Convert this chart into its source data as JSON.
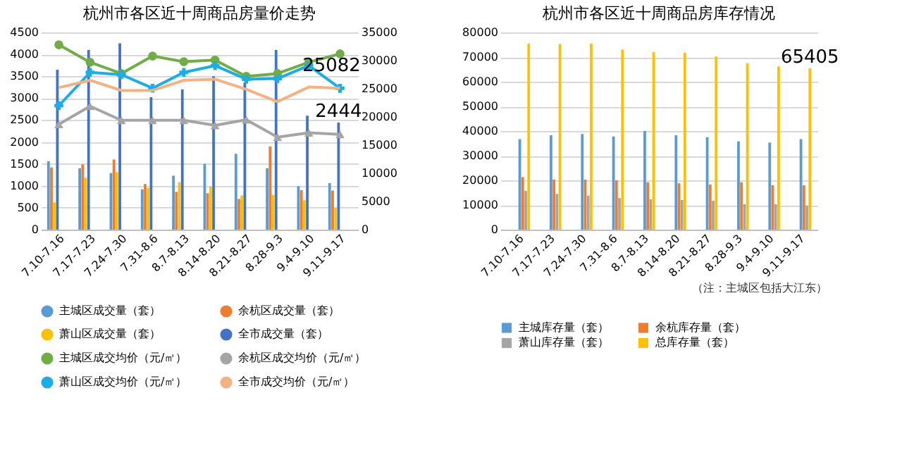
{
  "chart_data": [
    {
      "type": "bar",
      "title": "杭州市各区近十周商品房量价走势",
      "categories": [
        "7.10-7.16",
        "7.17-7.23",
        "7.24-7.30",
        "7.31-8.6",
        "8.7-8.13",
        "8.14-8.20",
        "8.21-8.27",
        "8.28-9.3",
        "9.4-9.10",
        "9.11-9.17"
      ],
      "ylim": [
        0,
        4500
      ],
      "yticks": [
        0,
        500,
        1000,
        1500,
        2000,
        2500,
        3000,
        3500,
        4000,
        4500
      ],
      "y2lim": [
        0,
        35000
      ],
      "y2ticks": [
        0,
        5000,
        10000,
        15000,
        20000,
        25000,
        30000,
        35000
      ],
      "grid": "y",
      "legend": "bottom",
      "series": [
        {
          "name": "主城区成交量（套）",
          "color": "#5b9bd5",
          "values": [
            1560,
            1400,
            1290,
            920,
            1230,
            1500,
            1730,
            1400,
            990,
            1060
          ]
        },
        {
          "name": "余杭区成交量（套）",
          "color": "#ed7d31",
          "values": [
            1420,
            1490,
            1600,
            1040,
            860,
            830,
            700,
            1900,
            900,
            890
          ]
        },
        {
          "name": "萧山区成交量（套）",
          "color": "#ffc000",
          "values": [
            620,
            1180,
            1310,
            950,
            1080,
            980,
            780,
            790,
            670,
            500
          ]
        },
        {
          "name": "全市成交量（套）",
          "color": "#4472c4",
          "values": [
            3650,
            4100,
            4250,
            3020,
            3200,
            3500,
            3360,
            4100,
            2600,
            2444
          ],
          "value_labels": [
            null,
            null,
            null,
            null,
            null,
            null,
            null,
            null,
            null,
            "2444"
          ]
        },
        {
          "name": "主城区成交均价（元/㎡）",
          "type": "line",
          "axis": "y2",
          "marker": "circle",
          "color": "#70ad47",
          "values": [
            32800,
            29700,
            27700,
            30800,
            29800,
            30100,
            27200,
            27700,
            29700,
            31200
          ]
        },
        {
          "name": "余杭区成交均价（元/㎡）",
          "type": "line",
          "axis": "y2",
          "marker": "triangle",
          "color": "#a5a5a5",
          "values": [
            18700,
            21900,
            19400,
            19400,
            19400,
            18500,
            19500,
            16400,
            17200,
            16900
          ]
        },
        {
          "name": "萧山区成交均价（元/㎡）",
          "type": "line",
          "axis": "y2",
          "marker": "cross",
          "color": "#1cade4",
          "values": [
            22000,
            27900,
            27500,
            25100,
            27900,
            29100,
            26700,
            26800,
            29100,
            25082
          ],
          "value_labels": [
            null,
            null,
            null,
            null,
            null,
            null,
            null,
            null,
            null,
            "25082"
          ]
        },
        {
          "name": "全市成交均价（元/㎡）",
          "type": "line",
          "axis": "y2",
          "marker": "none",
          "color": "#f4b183",
          "values": [
            25200,
            26500,
            24700,
            24700,
            26500,
            26700,
            24900,
            22700,
            25300,
            25100
          ]
        }
      ]
    },
    {
      "type": "bar",
      "title": "杭州市各区近十周商品房库存情况",
      "categories": [
        "7.10-7.16",
        "7.17-7.23",
        "7.24-7.30",
        "7.31-8.6",
        "8.7-8.13",
        "8.14-8.20",
        "8.21-8.27",
        "8.28-9.3",
        "9.4-9.10",
        "9.11-9.17"
      ],
      "ylim": [
        0,
        80000
      ],
      "yticks": [
        0,
        10000,
        20000,
        30000,
        40000,
        50000,
        60000,
        70000,
        80000
      ],
      "grid": "y",
      "legend": "bottom",
      "annotations": [
        "（注：主城区包括大江东）"
      ],
      "series": [
        {
          "name": "主城库存量（套）",
          "color": "#5b9bd5",
          "values": [
            36700,
            38300,
            38800,
            37800,
            40000,
            38300,
            37500,
            35800,
            35300,
            36700
          ]
        },
        {
          "name": "余杭库存量（套）",
          "color": "#ed7d31",
          "values": [
            21300,
            20300,
            20300,
            20000,
            19200,
            18800,
            18300,
            19200,
            18000,
            18000
          ]
        },
        {
          "name": "萧山库存量（套）",
          "color": "#a5a5a5",
          "values": [
            15700,
            14500,
            13800,
            12800,
            12300,
            12000,
            11700,
            10300,
            10300,
            9800
          ]
        },
        {
          "name": "总库存量（套）",
          "color": "#ffc000",
          "values": [
            75500,
            75300,
            75500,
            73000,
            72000,
            71700,
            70200,
            67500,
            66200,
            65405
          ],
          "value_labels": [
            null,
            null,
            null,
            null,
            null,
            null,
            null,
            null,
            null,
            "65405"
          ]
        }
      ]
    }
  ]
}
